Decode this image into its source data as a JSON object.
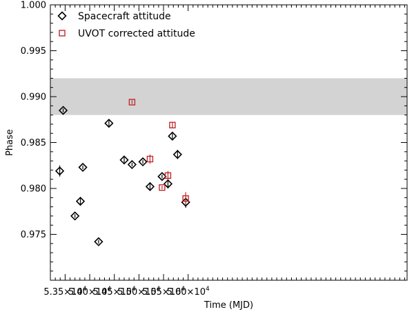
{
  "chart_data": {
    "type": "scatter",
    "title": "",
    "xlabel": "Time (MJD)",
    "ylabel": "Phase",
    "xlim": [
      53200,
      60450
    ],
    "ylim": [
      0.97,
      1.0
    ],
    "x_ticks": [
      {
        "value": 53500,
        "mantissa": "5.35",
        "exp": "4"
      },
      {
        "value": 54000,
        "mantissa": "5.40",
        "exp": "4"
      },
      {
        "value": 54500,
        "mantissa": "5.45",
        "exp": "4"
      },
      {
        "value": 55000,
        "mantissa": "5.50",
        "exp": "4"
      },
      {
        "value": 55500,
        "mantissa": "5.55",
        "exp": "4"
      },
      {
        "value": 56000,
        "mantissa": "5.60",
        "exp": "4"
      }
    ],
    "x_tick_prefix": "×10",
    "y_ticks": [
      {
        "value": 0.975,
        "label": "0.975"
      },
      {
        "value": 0.98,
        "label": "0.980"
      },
      {
        "value": 0.985,
        "label": "0.985"
      },
      {
        "value": 0.99,
        "label": "0.990"
      },
      {
        "value": 0.995,
        "label": "0.995"
      },
      {
        "value": 1.0,
        "label": "1.000"
      }
    ],
    "band": {
      "y_low": 0.988,
      "y_high": 0.992,
      "color": "#d3d3d3"
    },
    "legend_position": "top-left",
    "series": [
      {
        "name": "Spacecraft attitude",
        "marker": "diamond",
        "color": "#000000",
        "points": [
          {
            "x": 53390,
            "y": 0.9819,
            "err": 0.0006
          },
          {
            "x": 53460,
            "y": 0.9885,
            "err": 0.0002
          },
          {
            "x": 53700,
            "y": 0.977,
            "err": 0.0002
          },
          {
            "x": 53810,
            "y": 0.9786,
            "err": 0.0004
          },
          {
            "x": 53860,
            "y": 0.9823,
            "err": 0.0002
          },
          {
            "x": 54180,
            "y": 0.9742,
            "err": 0.0002
          },
          {
            "x": 54390,
            "y": 0.9871,
            "err": 0.0003
          },
          {
            "x": 54700,
            "y": 0.9831,
            "err": 0.0003
          },
          {
            "x": 54860,
            "y": 0.9826,
            "err": 0.0002
          },
          {
            "x": 55080,
            "y": 0.9829,
            "err": 0.0002
          },
          {
            "x": 55225,
            "y": 0.9802,
            "err": 0.0003
          },
          {
            "x": 55470,
            "y": 0.9813,
            "err": 0.0002
          },
          {
            "x": 55590,
            "y": 0.9805,
            "err": 0.0005
          },
          {
            "x": 55680,
            "y": 0.9857,
            "err": 0.0003
          },
          {
            "x": 55785,
            "y": 0.9837,
            "err": 0.0005
          },
          {
            "x": 55950,
            "y": 0.9785,
            "err": 0.0006
          }
        ]
      },
      {
        "name": "UVOT corrected attitude",
        "marker": "square",
        "color": "#c0282b",
        "points": [
          {
            "x": 54860,
            "y": 0.9894,
            "err": 0.0002
          },
          {
            "x": 55225,
            "y": 0.9832,
            "err": 0.0005
          },
          {
            "x": 55470,
            "y": 0.9801,
            "err": 0.0002
          },
          {
            "x": 55590,
            "y": 0.9814,
            "err": 0.0005
          },
          {
            "x": 55680,
            "y": 0.9869,
            "err": 0.0003
          },
          {
            "x": 55950,
            "y": 0.9789,
            "err": 0.0007
          }
        ]
      }
    ]
  }
}
